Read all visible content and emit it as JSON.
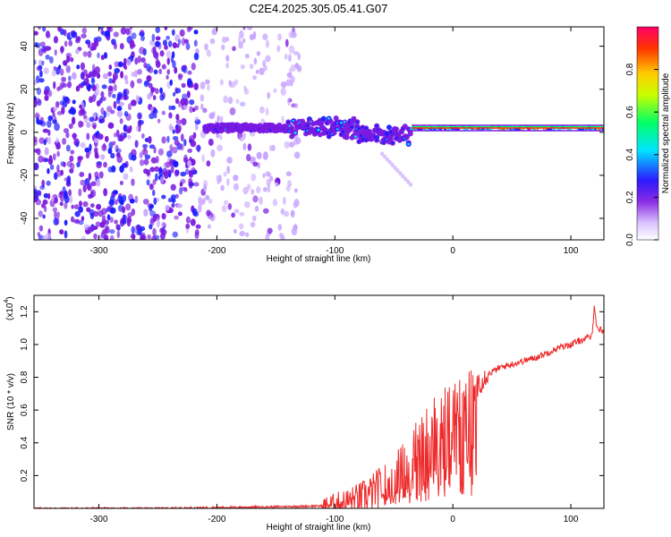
{
  "figure": {
    "title": "C2E4.2025.305.05.41.G07"
  },
  "chart_data": [
    {
      "type": "heatmap",
      "xlabel": "Height of straight line (km)",
      "ylabel": "Frequency (Hz)",
      "xlim": [
        -355,
        128
      ],
      "ylim": [
        -50,
        49
      ],
      "x_ticks": [
        -300,
        -200,
        -100,
        0,
        100
      ],
      "y_ticks": [
        -40,
        -20,
        0,
        20,
        40
      ],
      "colorbar": {
        "label": "Normalized spectral amplitude",
        "range": [
          0,
          1
        ],
        "ticks": [
          "0.0",
          "0.2",
          "0.4",
          "0.6",
          "0.8"
        ],
        "colormap": [
          "#ffffff",
          "#c9a6ff",
          "#7a1ae0",
          "#1a1aff",
          "#00e5ff",
          "#00ff66",
          "#c8ff00",
          "#ffd000",
          "#ff3300",
          "#ff0060"
        ]
      },
      "features": {
        "noise_region_x": [
          -355,
          -130
        ],
        "signal_start_x": -210,
        "signal_center_freq": 2,
        "strong_signal_start_x": -35
      }
    },
    {
      "type": "line",
      "xlabel": "Height of straight line (km)",
      "ylabel": "SNR (10 * v/v)",
      "y_multiplier": "(x10",
      "y_multiplier_exp": "4",
      "xlim": [
        -355,
        128
      ],
      "ylim": [
        0,
        1.3
      ],
      "x_ticks": [
        -300,
        -200,
        -100,
        0,
        100
      ],
      "y_ticks": [
        "0.2",
        "0.4",
        "0.6",
        "0.8",
        "1.0",
        "1.2"
      ],
      "series": [
        {
          "color": "#ee2a2a",
          "x": [
            -355,
            -300,
            -250,
            -200,
            -150,
            -110,
            -100,
            -90,
            -80,
            -70,
            -60,
            -50,
            -40,
            -30,
            -20,
            -10,
            0,
            10,
            20,
            30,
            40,
            50,
            60,
            70,
            80,
            90,
            100,
            110,
            118,
            120,
            122,
            128
          ],
          "y": [
            0.0,
            0.0,
            0.0,
            0.005,
            0.01,
            0.015,
            0.03,
            0.04,
            0.06,
            0.09,
            0.14,
            0.2,
            0.27,
            0.37,
            0.48,
            0.54,
            0.6,
            0.68,
            0.76,
            0.82,
            0.86,
            0.88,
            0.9,
            0.92,
            0.95,
            0.98,
            1.0,
            1.03,
            1.05,
            1.25,
            1.1,
            1.08
          ]
        }
      ]
    }
  ]
}
